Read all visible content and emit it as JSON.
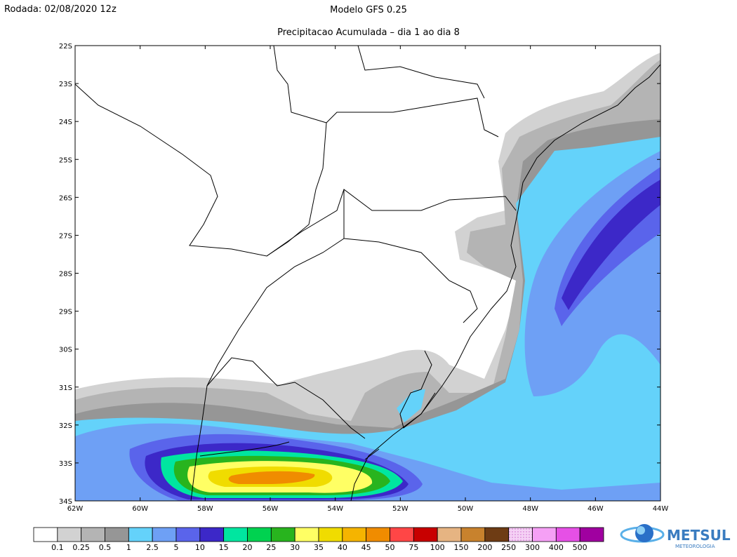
{
  "header": {
    "run": "Rodada: 02/08/2020 12z",
    "model": "Modelo GFS 0.25",
    "subtitle": "Precipitacao Acumulada – dia 1 ao dia 8"
  },
  "map": {
    "lat_labels": [
      "22S",
      "23S",
      "24S",
      "25S",
      "26S",
      "27S",
      "28S",
      "29S",
      "30S",
      "31S",
      "32S",
      "33S",
      "34S"
    ],
    "lon_labels": [
      "62W",
      "60W",
      "58W",
      "56W",
      "54W",
      "52W",
      "50W",
      "48W",
      "46W",
      "44W"
    ]
  },
  "colorbar": {
    "colors": [
      "#ffffff",
      "#d2d2d2",
      "#b4b4b4",
      "#969696",
      "#64d2fa",
      "#6ea0f5",
      "#5a64eb",
      "#3c28c8",
      "#00e6a0",
      "#00d250",
      "#28b41e",
      "#ffff64",
      "#f0dc00",
      "#f5b400",
      "#f08c00",
      "#ff4646",
      "#c80000",
      "#e6b482",
      "#c8822d",
      "#6e3c14",
      "#f5d2f5",
      "#f5a0f5",
      "#e650e6",
      "#a000a0"
    ],
    "labels": [
      "0.1",
      "0.25",
      "0.5",
      "1",
      "2.5",
      "5",
      "10",
      "15",
      "20",
      "25",
      "30",
      "35",
      "40",
      "45",
      "50",
      "75",
      "100",
      "150",
      "200",
      "250",
      "300",
      "400",
      "500"
    ]
  },
  "logo": {
    "name": "METSUL",
    "tagline": "METEOROLOGIA"
  }
}
